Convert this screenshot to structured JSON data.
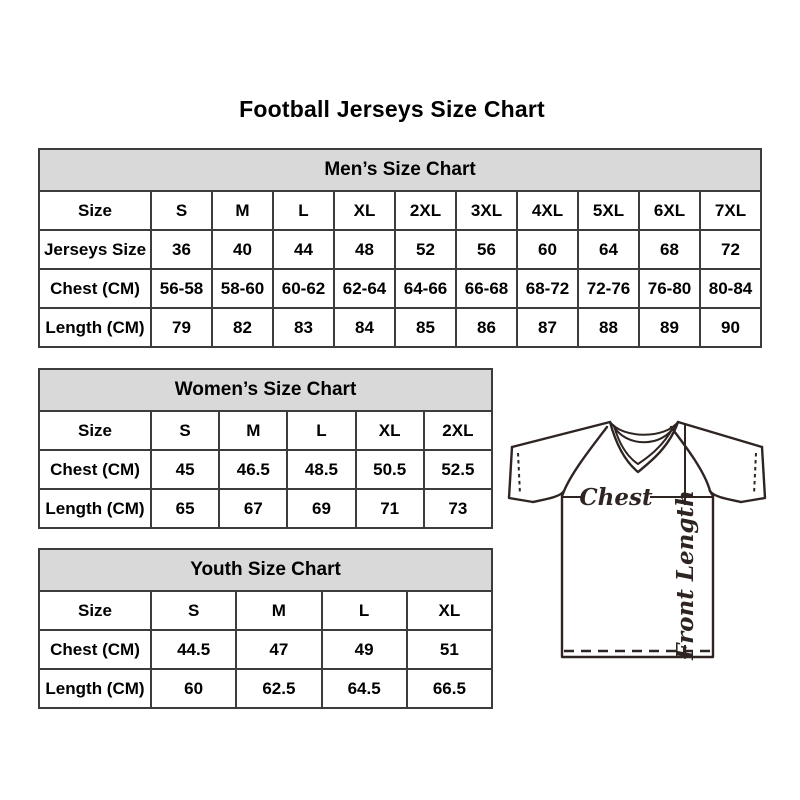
{
  "page_title": "Football Jerseys Size Chart",
  "colors": {
    "header_bg": "#d9d9d9",
    "table_border": "#3c3c3c",
    "text": "#000000",
    "jersey_ink": "#2e2522"
  },
  "tables": [
    {
      "id": "mens",
      "title": "Men’s Size Chart",
      "rows": [
        [
          "Size",
          "S",
          "M",
          "L",
          "XL",
          "2XL",
          "3XL",
          "4XL",
          "5XL",
          "6XL",
          "7XL"
        ],
        [
          "Jerseys Size",
          "36",
          "40",
          "44",
          "48",
          "52",
          "56",
          "60",
          "64",
          "68",
          "72"
        ],
        [
          "Chest (CM)",
          "56-58",
          "58-60",
          "60-62",
          "62-64",
          "64-66",
          "66-68",
          "68-72",
          "72-76",
          "76-80",
          "80-84"
        ],
        [
          "Length (CM)",
          "79",
          "82",
          "83",
          "84",
          "85",
          "86",
          "87",
          "88",
          "89",
          "90"
        ]
      ]
    },
    {
      "id": "womens",
      "title": "Women’s Size Chart",
      "rows": [
        [
          "Size",
          "S",
          "M",
          "L",
          "XL",
          "2XL"
        ],
        [
          "Chest (CM)",
          "45",
          "46.5",
          "48.5",
          "50.5",
          "52.5"
        ],
        [
          "Length (CM)",
          "65",
          "67",
          "69",
          "71",
          "73"
        ]
      ]
    },
    {
      "id": "youth",
      "title": "Youth Size Chart",
      "rows": [
        [
          "Size",
          "S",
          "M",
          "L",
          "XL"
        ],
        [
          "Chest (CM)",
          "44.5",
          "47",
          "49",
          "51"
        ],
        [
          "Length (CM)",
          "60",
          "62.5",
          "64.5",
          "66.5"
        ]
      ]
    }
  ],
  "jersey_diagram": {
    "chest_label": "Chest",
    "front_length_label": "Front Length"
  }
}
